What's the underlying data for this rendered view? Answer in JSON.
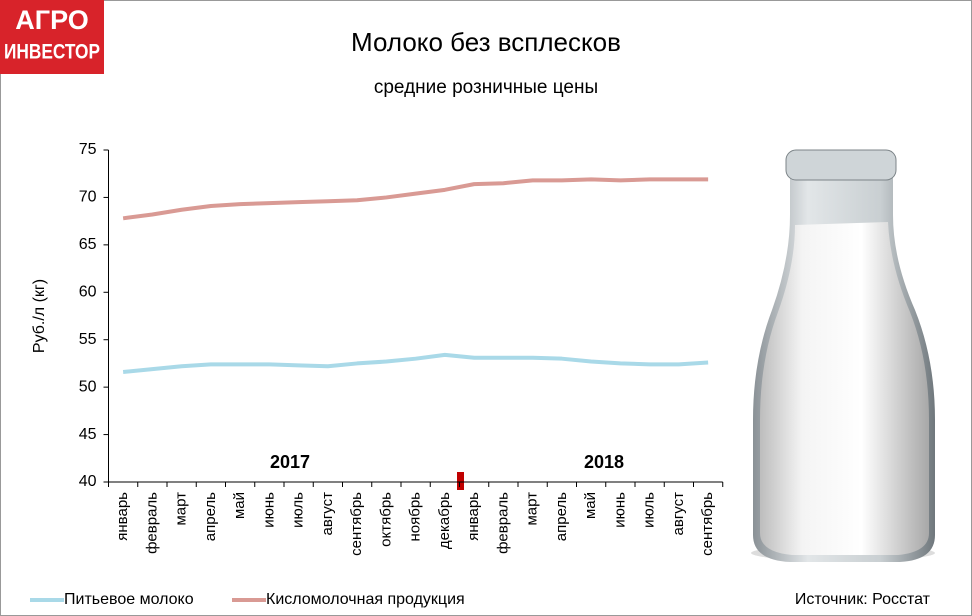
{
  "logo": {
    "line1": "АГРО",
    "line2": "ИНВЕСТОР"
  },
  "chart_data": {
    "type": "line",
    "title": "Молоко без всплесков",
    "subtitle": "средние розничные цены",
    "y_label": "Руб./л (кг)",
    "annotations": [
      "2017",
      "2018"
    ],
    "source": "Источник: Росстат",
    "categories": [
      "январь",
      "февраль",
      "март",
      "апрель",
      "май",
      "июнь",
      "июль",
      "август",
      "сентябрь",
      "октябрь",
      "ноябрь",
      "декабрь",
      "январь",
      "февраль",
      "март",
      "апрель",
      "май",
      "июнь",
      "июль",
      "август",
      "сентябрь"
    ],
    "series": [
      {
        "name": "Питьевое молоко",
        "color": "#a9d9e8",
        "values": [
          51.6,
          51.9,
          52.2,
          52.4,
          52.4,
          52.4,
          52.3,
          52.2,
          52.5,
          52.7,
          53.0,
          53.4,
          53.1,
          53.1,
          53.1,
          53.0,
          52.7,
          52.5,
          52.4,
          52.4,
          52.6
        ]
      },
      {
        "name": "Кисломолочная продукция",
        "color": "#d99a94",
        "values": [
          67.8,
          68.2,
          68.7,
          69.1,
          69.3,
          69.4,
          69.5,
          69.6,
          69.7,
          70.0,
          70.4,
          70.8,
          71.4,
          71.5,
          71.8,
          71.8,
          71.9,
          71.8,
          71.9,
          71.9,
          71.9
        ]
      }
    ],
    "ylim": [
      40,
      75
    ],
    "yticks": [
      40,
      45,
      50,
      55,
      60,
      65,
      70,
      75
    ],
    "grid": false
  }
}
